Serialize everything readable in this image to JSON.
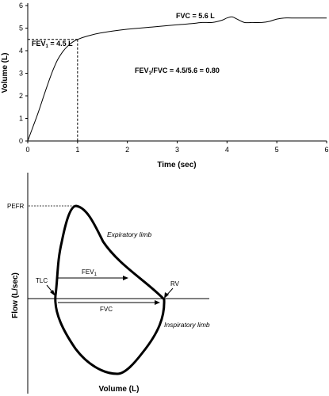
{
  "chart_data": [
    {
      "type": "line",
      "title": "",
      "xlabel": "Time (sec)",
      "ylabel": "Volume (L)",
      "xlim": [
        0,
        6
      ],
      "ylim": [
        0,
        6
      ],
      "x_ticks": [
        "0",
        "1",
        "2",
        "3",
        "4",
        "5",
        "6"
      ],
      "y_ticks": [
        "0",
        "1",
        "2",
        "3",
        "4",
        "5",
        "6"
      ],
      "grid": false,
      "legend": "none",
      "series": [
        {
          "x": [
            0,
            0.05,
            0.1,
            0.2,
            0.3,
            0.4,
            0.5,
            0.6,
            0.7,
            0.8,
            0.9,
            1.0,
            1.2,
            1.5,
            2.0,
            2.5,
            3.0,
            3.3,
            3.5,
            3.7,
            3.9,
            4.0,
            4.1,
            4.2,
            4.35,
            4.5,
            4.7,
            4.85,
            5.0,
            5.15,
            5.3,
            5.6,
            6.0
          ],
          "y": [
            0,
            0.3,
            0.6,
            1.2,
            1.85,
            2.5,
            3.1,
            3.6,
            3.95,
            4.2,
            4.38,
            4.5,
            4.65,
            4.8,
            4.95,
            5.05,
            5.15,
            5.2,
            5.25,
            5.25,
            5.35,
            5.45,
            5.5,
            5.4,
            5.25,
            5.25,
            5.25,
            5.3,
            5.4,
            5.45,
            5.45,
            5.45,
            5.45
          ]
        }
      ],
      "reference_point": {
        "x": 1,
        "y": 4.5
      },
      "annotations": {
        "fev1_label": "FEV",
        "fev1_sub": "1",
        "fev1_value": " = 4.5 L",
        "fvc": "FVC = 5.6 L",
        "ratio_a": "FEV",
        "ratio_sub": "1",
        "ratio_b": "/FVC = 4.5/5.6 = 0.80"
      }
    },
    {
      "type": "line",
      "title": "",
      "xlabel": "Volume (L)",
      "ylabel": "Flow (L/sec)",
      "grid": false,
      "legend": "none",
      "labels": {
        "pefr": "PEFR",
        "expiratory_limb": "Expiratory limb",
        "inspiratory_limb": "Inspiratory limb",
        "tlc": "TLC",
        "rv": "RV",
        "fev1": "FEV",
        "fev1_sub": "1",
        "fvc": "FVC"
      }
    }
  ],
  "style": {
    "line_color": "#000000",
    "background": "#ffffff"
  }
}
